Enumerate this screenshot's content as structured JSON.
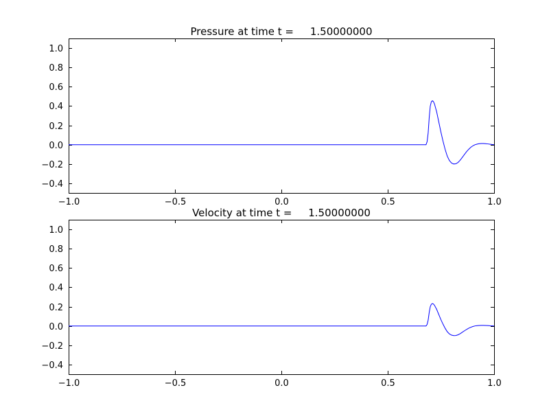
{
  "figure": {
    "background": "#ffffff",
    "line_color": "#0000ff",
    "axes_color": "#000000",
    "tick_label_color": "#000000"
  },
  "chart_data": [
    {
      "type": "line",
      "title": "Pressure at time t =     1.50000000",
      "xlabel": "",
      "ylabel": "",
      "xlim": [
        -1.0,
        1.0
      ],
      "ylim": [
        -0.5,
        1.1
      ],
      "grid": false,
      "legend": "none",
      "xticks": [
        -1.0,
        -0.5,
        0.0,
        0.5,
        1.0
      ],
      "xtick_labels": [
        "−1.0",
        "−0.5",
        "0.0",
        "0.5",
        "1.0"
      ],
      "yticks": [
        -0.4,
        -0.2,
        0.0,
        0.2,
        0.4,
        0.6,
        0.8,
        1.0
      ],
      "ytick_labels": [
        "−0.4",
        "−0.2",
        "0.0",
        "0.2",
        "0.4",
        "0.6",
        "0.8",
        "1.0"
      ],
      "series": [
        {
          "name": "pressure",
          "color": "#0000ff",
          "points": [
            [
              -1.0,
              0.0
            ],
            [
              -0.75,
              0.0
            ],
            [
              -0.5,
              0.0
            ],
            [
              -0.25,
              0.0
            ],
            [
              0.0,
              0.0
            ],
            [
              0.25,
              0.0
            ],
            [
              0.5,
              0.0
            ],
            [
              0.6,
              0.0
            ],
            [
              0.65,
              0.0
            ],
            [
              0.675,
              0.0
            ],
            [
              0.68,
              0.0
            ],
            [
              0.685,
              0.03
            ],
            [
              0.69,
              0.12
            ],
            [
              0.695,
              0.28
            ],
            [
              0.7,
              0.4
            ],
            [
              0.705,
              0.445
            ],
            [
              0.71,
              0.455
            ],
            [
              0.715,
              0.445
            ],
            [
              0.72,
              0.42
            ],
            [
              0.73,
              0.34
            ],
            [
              0.74,
              0.235
            ],
            [
              0.75,
              0.13
            ],
            [
              0.76,
              0.035
            ],
            [
              0.77,
              -0.05
            ],
            [
              0.78,
              -0.12
            ],
            [
              0.79,
              -0.165
            ],
            [
              0.8,
              -0.19
            ],
            [
              0.81,
              -0.2
            ],
            [
              0.82,
              -0.198
            ],
            [
              0.83,
              -0.185
            ],
            [
              0.84,
              -0.162
            ],
            [
              0.85,
              -0.133
            ],
            [
              0.86,
              -0.103
            ],
            [
              0.87,
              -0.074
            ],
            [
              0.88,
              -0.049
            ],
            [
              0.89,
              -0.028
            ],
            [
              0.9,
              -0.012
            ],
            [
              0.91,
              -0.001
            ],
            [
              0.92,
              0.006
            ],
            [
              0.93,
              0.01
            ],
            [
              0.94,
              0.012
            ],
            [
              0.95,
              0.012
            ],
            [
              0.96,
              0.01
            ],
            [
              0.97,
              0.008
            ],
            [
              0.98,
              0.005
            ],
            [
              0.99,
              0.002
            ],
            [
              1.0,
              0.0
            ]
          ]
        }
      ]
    },
    {
      "type": "line",
      "title": "Velocity at time t =     1.50000000",
      "xlabel": "",
      "ylabel": "",
      "xlim": [
        -1.0,
        1.0
      ],
      "ylim": [
        -0.5,
        1.1
      ],
      "grid": false,
      "legend": "none",
      "xticks": [
        -1.0,
        -0.5,
        0.0,
        0.5,
        1.0
      ],
      "xtick_labels": [
        "−1.0",
        "−0.5",
        "0.0",
        "0.5",
        "1.0"
      ],
      "yticks": [
        -0.4,
        -0.2,
        0.0,
        0.2,
        0.4,
        0.6,
        0.8,
        1.0
      ],
      "ytick_labels": [
        "−0.4",
        "−0.2",
        "0.0",
        "0.2",
        "0.4",
        "0.6",
        "0.8",
        "1.0"
      ],
      "series": [
        {
          "name": "velocity",
          "color": "#0000ff",
          "points": [
            [
              -1.0,
              0.0
            ],
            [
              -0.75,
              0.0
            ],
            [
              -0.5,
              0.0
            ],
            [
              -0.25,
              0.0
            ],
            [
              0.0,
              0.0
            ],
            [
              0.25,
              0.0
            ],
            [
              0.5,
              0.0
            ],
            [
              0.6,
              0.0
            ],
            [
              0.65,
              0.0
            ],
            [
              0.675,
              0.0
            ],
            [
              0.68,
              0.0
            ],
            [
              0.685,
              0.015
            ],
            [
              0.69,
              0.06
            ],
            [
              0.695,
              0.14
            ],
            [
              0.7,
              0.2
            ],
            [
              0.705,
              0.225
            ],
            [
              0.71,
              0.232
            ],
            [
              0.715,
              0.227
            ],
            [
              0.72,
              0.213
            ],
            [
              0.73,
              0.172
            ],
            [
              0.74,
              0.118
            ],
            [
              0.75,
              0.065
            ],
            [
              0.76,
              0.018
            ],
            [
              0.77,
              -0.025
            ],
            [
              0.78,
              -0.06
            ],
            [
              0.79,
              -0.083
            ],
            [
              0.8,
              -0.095
            ],
            [
              0.81,
              -0.1
            ],
            [
              0.82,
              -0.099
            ],
            [
              0.83,
              -0.092
            ],
            [
              0.84,
              -0.081
            ],
            [
              0.85,
              -0.066
            ],
            [
              0.86,
              -0.051
            ],
            [
              0.87,
              -0.037
            ],
            [
              0.88,
              -0.024
            ],
            [
              0.89,
              -0.014
            ],
            [
              0.9,
              -0.006
            ],
            [
              0.91,
              0.0
            ],
            [
              0.92,
              0.003
            ],
            [
              0.93,
              0.005
            ],
            [
              0.94,
              0.006
            ],
            [
              0.95,
              0.006
            ],
            [
              0.96,
              0.005
            ],
            [
              0.97,
              0.004
            ],
            [
              0.98,
              0.002
            ],
            [
              0.99,
              0.001
            ],
            [
              1.0,
              0.0
            ]
          ]
        }
      ]
    }
  ]
}
